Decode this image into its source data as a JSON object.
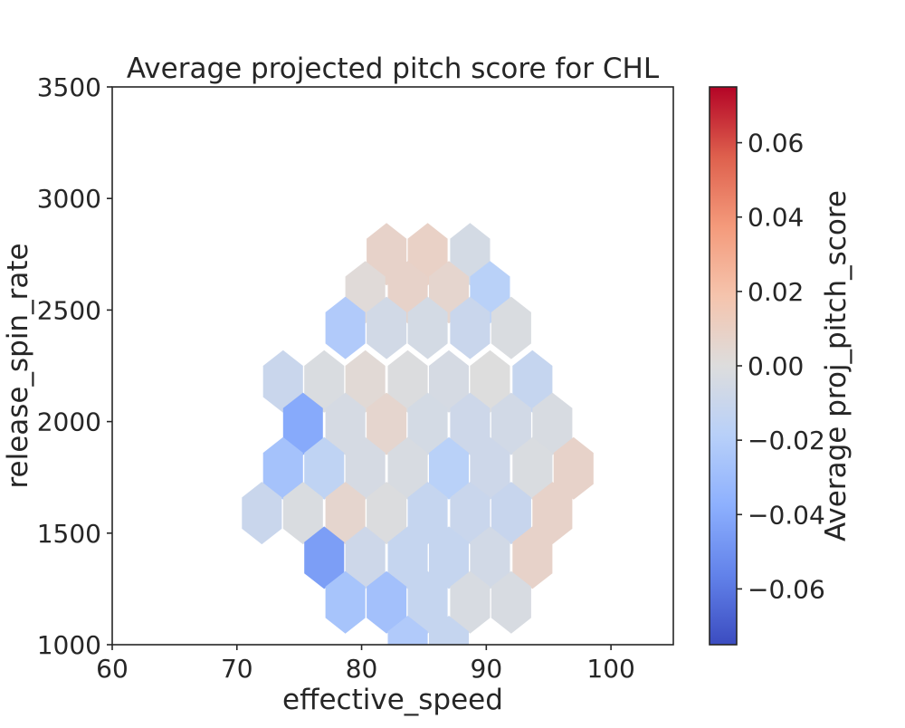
{
  "chart_data": {
    "type": "heatmap",
    "subtype": "hexbin",
    "title": "Average projected pitch score for CHL",
    "xlabel": "effective_speed",
    "ylabel": "release_spin_rate",
    "xlim": [
      60,
      105
    ],
    "ylim": [
      1000,
      3500
    ],
    "xticks": [
      60,
      70,
      80,
      90,
      100
    ],
    "yticks": [
      1000,
      1500,
      2000,
      2500,
      3000,
      3500
    ],
    "grid": false,
    "colormap": "coolwarm",
    "colorbar": {
      "label": "Average proj_pitch_score",
      "range": [
        -0.075,
        0.075
      ],
      "ticks": [
        -0.06,
        -0.04,
        -0.02,
        0.0,
        0.02,
        0.04,
        0.06
      ],
      "tick_labels": [
        "−0.06",
        "−0.04",
        "−0.02",
        "0.00",
        "0.02",
        "0.04",
        "0.06"
      ]
    },
    "hex_radius_x": 1.6,
    "hex_radius_y": 140,
    "cells": [
      {
        "x": 82.0,
        "y": 2750,
        "value": 0.008
      },
      {
        "x": 85.3,
        "y": 2750,
        "value": 0.009
      },
      {
        "x": 88.7,
        "y": 2750,
        "value": -0.005
      },
      {
        "x": 80.3,
        "y": 2580,
        "value": 0.002
      },
      {
        "x": 83.7,
        "y": 2580,
        "value": 0.008
      },
      {
        "x": 87.0,
        "y": 2580,
        "value": 0.006
      },
      {
        "x": 90.3,
        "y": 2580,
        "value": -0.018
      },
      {
        "x": 78.7,
        "y": 2420,
        "value": -0.022
      },
      {
        "x": 82.0,
        "y": 2420,
        "value": -0.006
      },
      {
        "x": 85.3,
        "y": 2420,
        "value": -0.005
      },
      {
        "x": 88.7,
        "y": 2420,
        "value": -0.01
      },
      {
        "x": 92.0,
        "y": 2420,
        "value": -0.002
      },
      {
        "x": 73.7,
        "y": 2180,
        "value": -0.01
      },
      {
        "x": 77.0,
        "y": 2180,
        "value": -0.002
      },
      {
        "x": 80.3,
        "y": 2180,
        "value": 0.003
      },
      {
        "x": 83.7,
        "y": 2180,
        "value": -0.001
      },
      {
        "x": 87.0,
        "y": 2180,
        "value": -0.004
      },
      {
        "x": 90.3,
        "y": 2180,
        "value": 0.0
      },
      {
        "x": 93.7,
        "y": 2180,
        "value": -0.012
      },
      {
        "x": 75.3,
        "y": 1990,
        "value": -0.04
      },
      {
        "x": 78.7,
        "y": 1990,
        "value": -0.004
      },
      {
        "x": 82.0,
        "y": 1990,
        "value": 0.006
      },
      {
        "x": 85.3,
        "y": 1990,
        "value": -0.005
      },
      {
        "x": 88.7,
        "y": 1990,
        "value": -0.008
      },
      {
        "x": 92.0,
        "y": 1990,
        "value": -0.006
      },
      {
        "x": 95.3,
        "y": 1990,
        "value": -0.003
      },
      {
        "x": 73.7,
        "y": 1790,
        "value": -0.027
      },
      {
        "x": 77.0,
        "y": 1790,
        "value": -0.015
      },
      {
        "x": 80.3,
        "y": 1790,
        "value": -0.004
      },
      {
        "x": 83.7,
        "y": 1790,
        "value": -0.003
      },
      {
        "x": 87.0,
        "y": 1790,
        "value": -0.018
      },
      {
        "x": 90.3,
        "y": 1790,
        "value": -0.008
      },
      {
        "x": 93.7,
        "y": 1790,
        "value": -0.002
      },
      {
        "x": 97.0,
        "y": 1790,
        "value": 0.008
      },
      {
        "x": 72.0,
        "y": 1590,
        "value": -0.01
      },
      {
        "x": 75.3,
        "y": 1590,
        "value": -0.002
      },
      {
        "x": 78.7,
        "y": 1590,
        "value": 0.006
      },
      {
        "x": 82.0,
        "y": 1590,
        "value": -0.001
      },
      {
        "x": 85.3,
        "y": 1590,
        "value": -0.012
      },
      {
        "x": 88.7,
        "y": 1590,
        "value": -0.01
      },
      {
        "x": 92.0,
        "y": 1590,
        "value": -0.011
      },
      {
        "x": 95.3,
        "y": 1590,
        "value": 0.008
      },
      {
        "x": 77.0,
        "y": 1390,
        "value": -0.045
      },
      {
        "x": 80.3,
        "y": 1390,
        "value": -0.008
      },
      {
        "x": 83.7,
        "y": 1390,
        "value": -0.012
      },
      {
        "x": 87.0,
        "y": 1390,
        "value": -0.012
      },
      {
        "x": 90.3,
        "y": 1390,
        "value": -0.006
      },
      {
        "x": 93.7,
        "y": 1390,
        "value": 0.008
      },
      {
        "x": 78.7,
        "y": 1190,
        "value": -0.026
      },
      {
        "x": 82.0,
        "y": 1190,
        "value": -0.028
      },
      {
        "x": 85.3,
        "y": 1190,
        "value": -0.012
      },
      {
        "x": 88.7,
        "y": 1190,
        "value": -0.003
      },
      {
        "x": 92.0,
        "y": 1190,
        "value": -0.003
      },
      {
        "x": 83.7,
        "y": 990,
        "value": -0.022
      },
      {
        "x": 87.0,
        "y": 990,
        "value": -0.012
      }
    ]
  }
}
